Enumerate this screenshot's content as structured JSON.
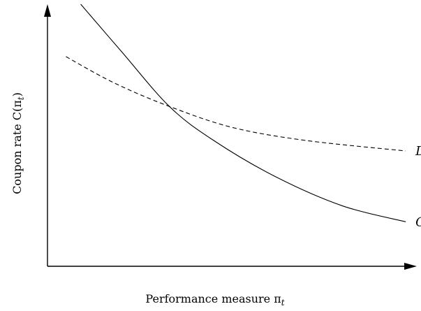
{
  "chart_data": {
    "type": "line",
    "xlabel": "Performance measure π",
    "xlabel_sub": "t",
    "ylabel": "Coupon rate C(π",
    "ylabel_sub": "t",
    "ylabel_close": ")",
    "grid": false,
    "axis_ticks": false,
    "series": [
      {
        "name": "C",
        "style": "solid",
        "x": [
          0.09,
          0.2,
          0.33,
          0.45,
          0.62,
          0.8,
          0.97
        ],
        "y": [
          1.0,
          0.82,
          0.61,
          0.48,
          0.34,
          0.23,
          0.17
        ]
      },
      {
        "name": "D",
        "style": "dashed",
        "x": [
          0.05,
          0.18,
          0.33,
          0.5,
          0.7,
          0.97
        ],
        "y": [
          0.8,
          0.7,
          0.61,
          0.53,
          0.48,
          0.44
        ]
      }
    ]
  }
}
